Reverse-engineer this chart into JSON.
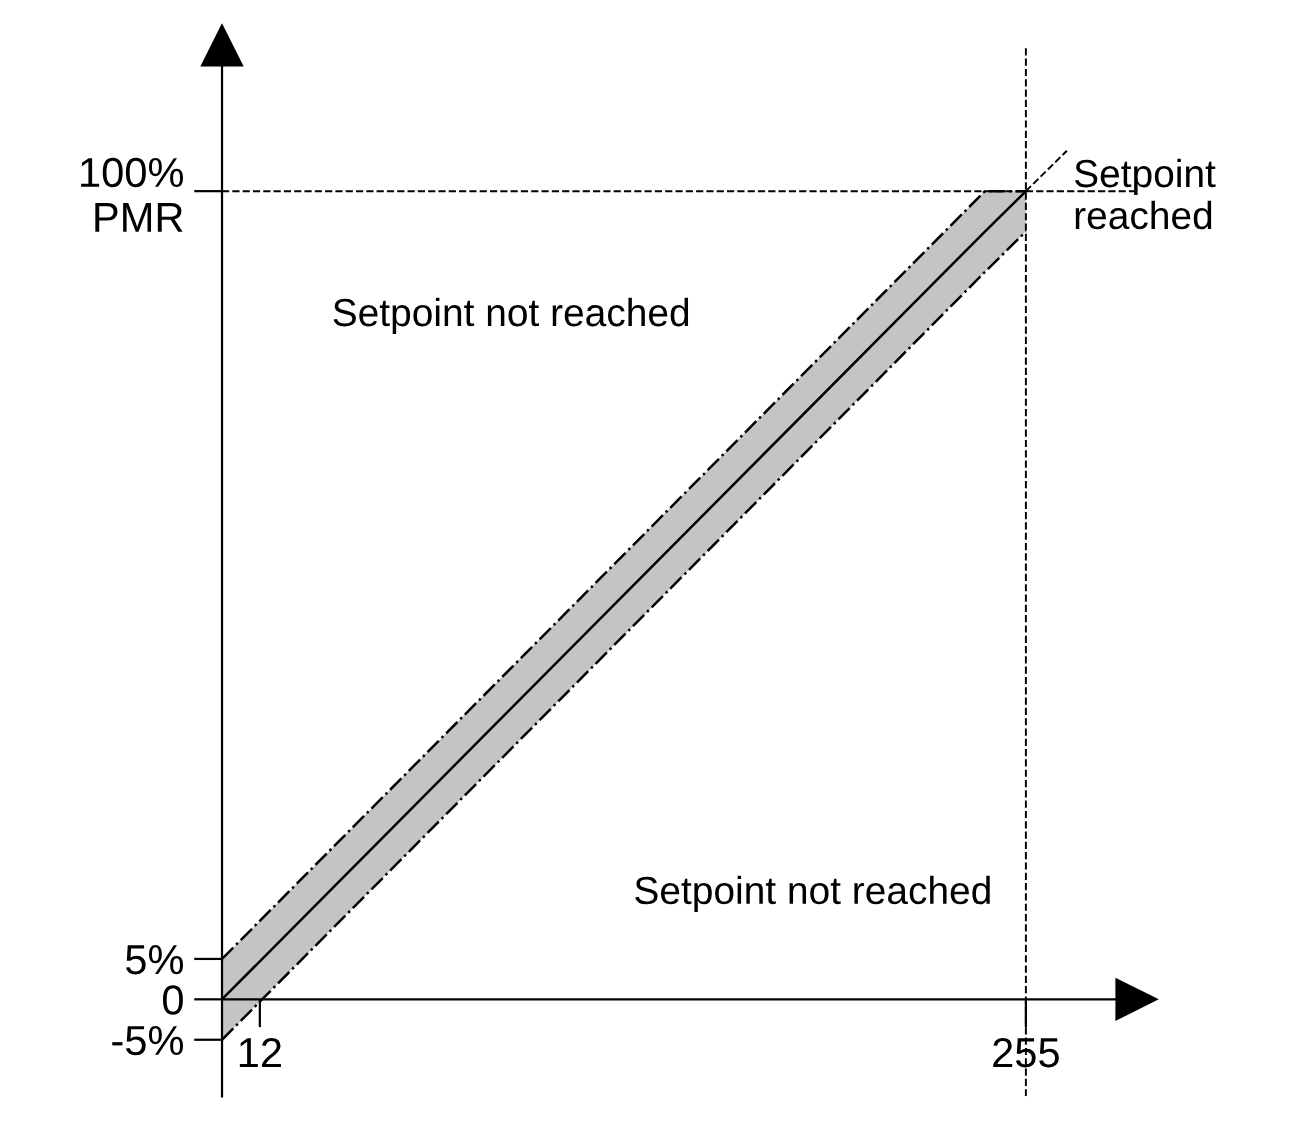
{
  "chart_data": {
    "type": "line",
    "series": [
      {
        "color": "#000000",
        "x": [
          0,
          242,
          255
        ],
        "values": [
          0,
          95,
          100
        ],
        "lower": [
          -5,
          90,
          95
        ],
        "upper": [
          5,
          100,
          100
        ],
        "line_style": "solid"
      },
      {
        "color": "#000000",
        "x": [
          255,
          268
        ],
        "values": [
          100,
          105
        ],
        "line_style": "dashed"
      }
    ],
    "xlim": [
      0,
      290
    ],
    "ylim": [
      -12,
      118
    ],
    "xticks": [
      12,
      255
    ],
    "yticks": [
      {
        "value": -5,
        "label": "-5%"
      },
      0,
      {
        "value": 5,
        "label": "5%"
      },
      {
        "value": 100,
        "label": "100%\nPMR"
      }
    ],
    "ref_lines": [
      {
        "axis": "y",
        "value": 100,
        "line_style": "dashed"
      },
      {
        "axis": "x",
        "value": 255,
        "line_style": "dashed"
      }
    ],
    "annotations": [
      "Setpoint not reached",
      "Setpoint not reached",
      {
        "text": "Setpoint reached",
        "x": 270,
        "y": 104
      }
    ],
    "grid": false,
    "legend": false,
    "marker": "none"
  }
}
